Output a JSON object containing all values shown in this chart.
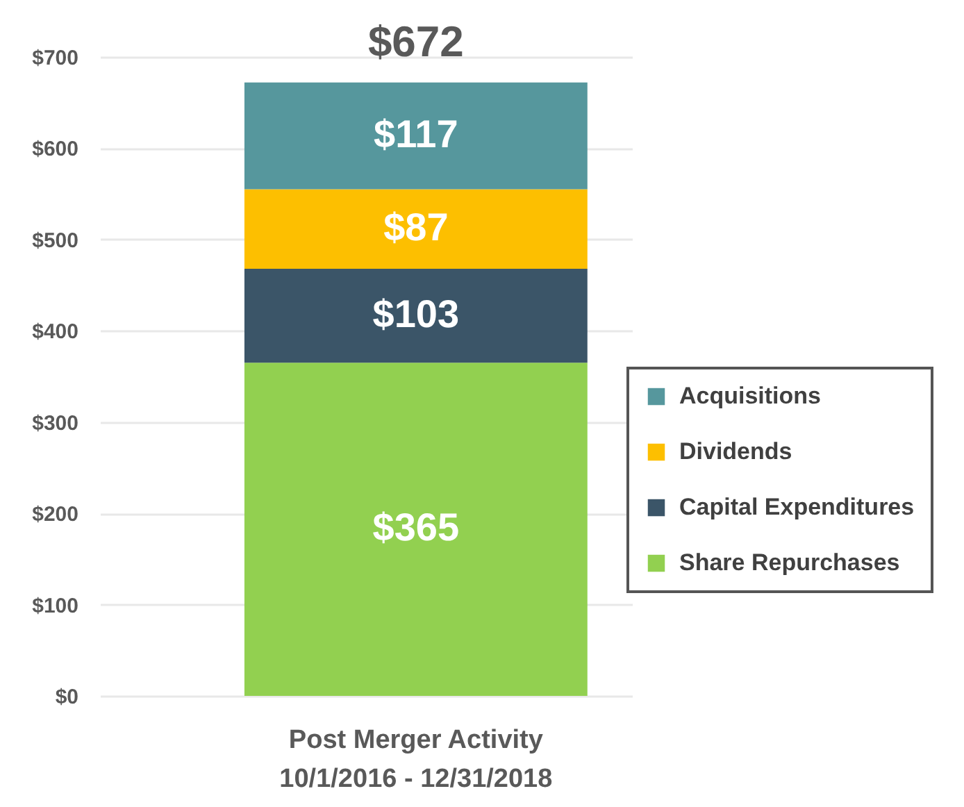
{
  "chart_data": {
    "type": "bar",
    "stacked": true,
    "categories": [
      "Post Merger Activity\n10/1/2016 - 12/31/2018"
    ],
    "series": [
      {
        "name": "Share Repurchases",
        "color": "#92d050",
        "values": [
          365
        ],
        "value_labels": [
          "$365"
        ]
      },
      {
        "name": "Capital Expenditures",
        "color": "#3b5568",
        "values": [
          103
        ],
        "value_labels": [
          "$103"
        ]
      },
      {
        "name": "Dividends",
        "color": "#fdbf00",
        "values": [
          87
        ],
        "value_labels": [
          "$87"
        ]
      },
      {
        "name": "Acquisitions",
        "color": "#56979d",
        "values": [
          117
        ],
        "value_labels": [
          "$117"
        ]
      }
    ],
    "totals": [
      "$672"
    ],
    "ylim": [
      0,
      700
    ],
    "yticks": [
      {
        "value": 0,
        "label": "$0"
      },
      {
        "value": 100,
        "label": "$100"
      },
      {
        "value": 200,
        "label": "$200"
      },
      {
        "value": 300,
        "label": "$300"
      },
      {
        "value": 400,
        "label": "$400"
      },
      {
        "value": 500,
        "label": "$500"
      },
      {
        "value": 600,
        "label": "$600"
      },
      {
        "value": 700,
        "label": "$700"
      }
    ],
    "grid": "y",
    "legend": "right"
  }
}
